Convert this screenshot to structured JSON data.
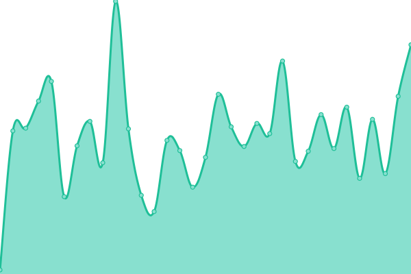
{
  "chart_data": {
    "type": "area",
    "title": "",
    "xlabel": "",
    "ylabel": "",
    "grid": false,
    "legend": "none",
    "smooth": true,
    "ylim": [
      0,
      400
    ],
    "x": [
      0,
      1,
      2,
      3,
      4,
      5,
      6,
      7,
      8,
      9,
      10,
      11,
      12,
      13,
      14,
      15,
      16,
      17,
      18,
      19,
      20,
      21,
      22,
      23,
      24,
      25,
      26,
      27,
      28,
      29,
      30,
      31,
      32
    ],
    "series": [
      {
        "values": [
          3,
          208,
          212,
          252,
          281,
          111,
          186,
          222,
          161,
          399,
          211,
          113,
          89,
          194,
          179,
          125,
          169,
          262,
          214,
          185,
          219,
          204,
          311,
          163,
          178,
          232,
          182,
          243,
          138,
          225,
          145,
          259,
          335
        ],
        "line_color": "#1fbf98",
        "fill_color": "#88e0cf",
        "marker_fill": "#88e0cf",
        "marker_stroke": "#1fbf98"
      }
    ]
  }
}
